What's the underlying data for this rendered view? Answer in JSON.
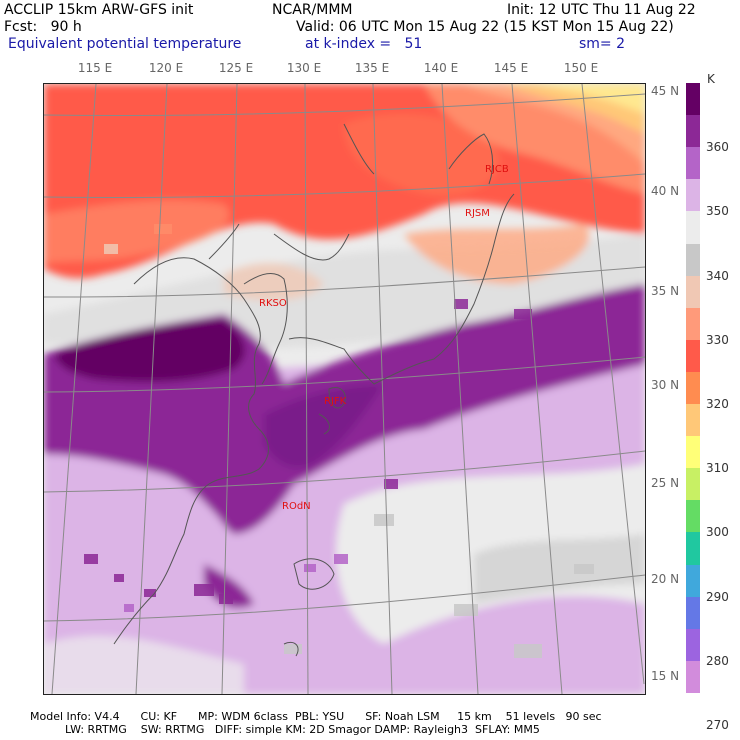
{
  "header": {
    "line1_left": "ACCLIP 15km ARW-GFS init",
    "line1_center": "NCAR/MMM",
    "line1_right": "Init: 12 UTC Thu 11 Aug 22",
    "line2_left": "Fcst:   90 h",
    "line2_right": "Valid: 06 UTC Mon 15 Aug 22 (15 KST Mon 15 Aug 22)",
    "line3_left": "Equivalent potential temperature",
    "line3_center": "at k-index =   51",
    "line3_right": "sm= 2"
  },
  "map": {
    "longitude_labels": [
      "115 E",
      "120 E",
      "125 E",
      "130 E",
      "135 E",
      "140 E",
      "145 E",
      "150 E"
    ],
    "latitude_labels": [
      "45 N",
      "40 N",
      "35 N",
      "30 N",
      "25 N",
      "20 N",
      "15 N"
    ],
    "stations": [
      "RJCB",
      "RJSM",
      "RKSO",
      "RJFK",
      "ROdN"
    ]
  },
  "colorbar": {
    "unit": "K",
    "labels": [
      "360",
      "350",
      "340",
      "330",
      "320",
      "310",
      "300",
      "290",
      "280",
      "270"
    ],
    "colors": [
      "#640064",
      "#8c2896",
      "#b464c8",
      "#dcb4e6",
      "#ececec",
      "#c8c8c8",
      "#f0c8b4",
      "#ff9a7a",
      "#ff5a4a",
      "#ff8c50",
      "#ffc878",
      "#ffff78",
      "#c8f064",
      "#64dc64",
      "#20c8a0",
      "#40a8dc",
      "#6478e6",
      "#9c64e0",
      "#d28cdc"
    ]
  },
  "footer": {
    "line1": "Model Info: V4.4      CU: KF      MP: WDM 6class  PBL: YSU      SF: Noah LSM     15 km    51 levels   90 sec",
    "line2": "          LW: RRTMG    SW: RRTMG   DIFF: simple KM: 2D Smagor DAMP: Rayleigh3  SFLAY: MM5"
  }
}
